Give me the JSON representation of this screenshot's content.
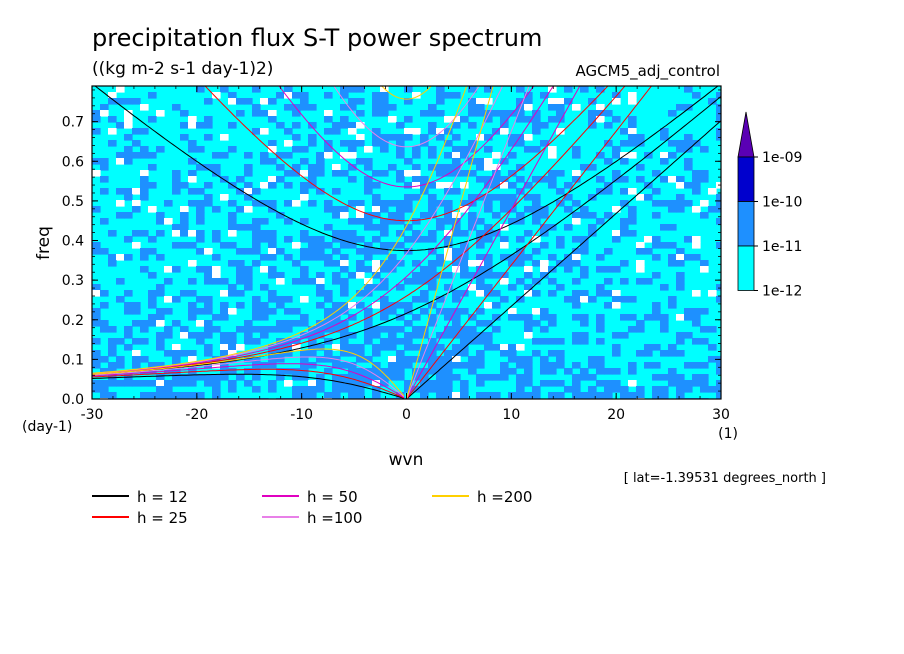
{
  "chart_data": {
    "type": "heatmap",
    "title": "precipitation flux S-T power spectrum",
    "subtitle": "((kg m-2 s-1 day-1)2)",
    "run_label": "AGCM5_adj_control",
    "xlabel": "wvn",
    "ylabel": "freq",
    "x_unit": "(1)",
    "y_unit": "(day-1)",
    "xlim": [
      -30,
      30
    ],
    "ylim": [
      0,
      0.79
    ],
    "x_ticks": [
      -30,
      -20,
      -10,
      0,
      10,
      20,
      30
    ],
    "x_tick_labels": [
      "-30",
      "-20",
      "-10",
      "0",
      "10",
      "20",
      "30"
    ],
    "y_ticks": [
      0.0,
      0.1,
      0.2,
      0.3,
      0.4,
      0.5,
      0.6,
      0.7
    ],
    "y_tick_labels": [
      "0.0",
      "0.1",
      "0.2",
      "0.3",
      "0.4",
      "0.5",
      "0.6",
      "0.7"
    ],
    "colorbar": {
      "levels": [
        "1e-12",
        "1e-11",
        "1e-10",
        "1e-09"
      ],
      "colors": [
        "#00ffff",
        "#1e90ff",
        "#0000cd",
        "#5a00b4"
      ],
      "extend": "max"
    },
    "power_field_colors": {
      "below": "#ffffff",
      "band1": "#00ffff",
      "band2": "#1e90ff"
    },
    "annotation": "[ lat=-1.39531 degrees_north ]",
    "dispersion_curves": {
      "equivalent_depths": [
        {
          "label": "h = 12",
          "h": 12,
          "color": "#000000"
        },
        {
          "label": "h = 25",
          "h": 25,
          "color": "#ff0000"
        },
        {
          "label": "h = 50",
          "h": 50,
          "color": "#e000c0"
        },
        {
          "label": "h =100",
          "h": 100,
          "color": "#e880e8"
        },
        {
          "label": "h =200",
          "h": 200,
          "color": "#ffd000"
        }
      ],
      "families": [
        "kelvin",
        "mixed_rossby_gravity",
        "inertio_gravity_n1",
        "equatorial_rossby_n1"
      ]
    }
  }
}
